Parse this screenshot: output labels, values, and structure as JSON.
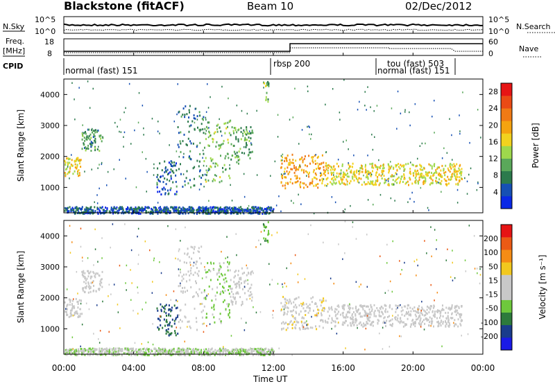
{
  "header": {
    "station": "Blackstone (fitACF)",
    "beam": "Beam 10",
    "date": "02/Dec/2012"
  },
  "labels": {
    "nsky": "N.Sky",
    "nsearch": "N.Search",
    "freq": "Freq.",
    "freq_unit": "[MHz]",
    "nave": "Nave",
    "cpid": "CPID"
  },
  "noise_ticks": {
    "top": "10^5",
    "bottom": "10^0"
  },
  "freq_ticks": {
    "left": [
      "18",
      "8"
    ],
    "right": [
      "60",
      "0"
    ]
  },
  "cpid_segments": [
    {
      "label": "normal (fast) 151",
      "start": 0
    },
    {
      "label": "rbsp 200",
      "start": 12.0
    },
    {
      "label": "tou (fast) 503",
      "start": 18.1
    },
    {
      "label": "normal (fast) 151",
      "start": 18.1
    }
  ],
  "chart_data": [
    {
      "type": "heatmap",
      "title": "Power",
      "xlabel": "Time UT",
      "ylabel": "Slant Range [km]",
      "xlim": [
        0,
        24
      ],
      "ylim": [
        180,
        4500
      ],
      "x_ticks": [
        "00:00",
        "04:00",
        "08:00",
        "12:00",
        "16:00",
        "20:00",
        "00:00"
      ],
      "y_ticks": [
        1000,
        2000,
        3000,
        4000
      ],
      "colorbar": {
        "label": "Power [dB]",
        "ticks": [
          4,
          8,
          12,
          16,
          20,
          24,
          28
        ],
        "range": [
          0,
          30
        ],
        "colors": [
          "#0a28e6",
          "#1650b4",
          "#2c7a4c",
          "#5aa85a",
          "#9ed84c",
          "#f2d21e",
          "#f5a30f",
          "#f07a14",
          "#ea4a14",
          "#e61414"
        ]
      },
      "bands": [
        {
          "t0": 0.0,
          "t1": 1.0,
          "r0": 1400,
          "r1": 2000,
          "level": 16
        },
        {
          "t0": 1.0,
          "t1": 2.2,
          "r0": 2200,
          "r1": 2900,
          "level": 9
        },
        {
          "t0": 5.3,
          "t1": 6.5,
          "r0": 800,
          "r1": 1900,
          "level": 6
        },
        {
          "t0": 6.5,
          "t1": 8.0,
          "r0": 1000,
          "r1": 3700,
          "level": 7
        },
        {
          "t0": 8.0,
          "t1": 9.5,
          "r0": 1200,
          "r1": 3200,
          "level": 12
        },
        {
          "t0": 9.5,
          "t1": 10.8,
          "r0": 1800,
          "r1": 3000,
          "level": 10
        },
        {
          "t0": 11.4,
          "t1": 11.7,
          "r0": 3800,
          "r1": 4500,
          "level": 12
        },
        {
          "t0": 12.4,
          "t1": 15.0,
          "r0": 1000,
          "r1": 2100,
          "level": 20
        },
        {
          "t0": 15.0,
          "t1": 22.8,
          "r0": 1100,
          "r1": 1800,
          "level": 16
        },
        {
          "t0": 0.0,
          "t1": 12.0,
          "r0": 180,
          "r1": 400,
          "level": 5
        }
      ]
    },
    {
      "type": "heatmap",
      "title": "Velocity",
      "xlabel": "Time UT",
      "ylabel": "Slant Range [km]",
      "xlim": [
        0,
        24
      ],
      "ylim": [
        180,
        4500
      ],
      "x_ticks": [
        "00:00",
        "04:00",
        "08:00",
        "12:00",
        "16:00",
        "20:00",
        "00:00"
      ],
      "y_ticks": [
        1000,
        2000,
        3000,
        4000
      ],
      "colorbar": {
        "label": "Velocity [m s⁻¹]",
        "ticks": [
          200,
          100,
          50,
          15,
          -15,
          -50,
          -100,
          -200
        ],
        "range": [
          -250,
          250
        ],
        "colors": [
          "#1a1ae6",
          "#1a3c8c",
          "#2d7a3c",
          "#6ec83c",
          "#c8c8c8",
          "#c8c8c8",
          "#f2c81e",
          "#f58c14",
          "#eb5a14",
          "#e61414"
        ]
      },
      "bands": [
        {
          "t0": 0.0,
          "t1": 1.0,
          "r0": 1400,
          "r1": 2000,
          "level": -5
        },
        {
          "t0": 1.0,
          "t1": 2.2,
          "r0": 2200,
          "r1": 2900,
          "level": 0
        },
        {
          "t0": 5.3,
          "t1": 6.5,
          "r0": 800,
          "r1": 1900,
          "level": -150
        },
        {
          "t0": 6.5,
          "t1": 8.0,
          "r0": 1000,
          "r1": 3700,
          "level": 5
        },
        {
          "t0": 8.0,
          "t1": 9.5,
          "r0": 1200,
          "r1": 3200,
          "level": -60
        },
        {
          "t0": 9.5,
          "t1": 10.8,
          "r0": 1800,
          "r1": 3000,
          "level": 10
        },
        {
          "t0": 11.4,
          "t1": 11.7,
          "r0": 3800,
          "r1": 4500,
          "level": -80
        },
        {
          "t0": 12.4,
          "t1": 15.0,
          "r0": 1000,
          "r1": 2100,
          "level": 30
        },
        {
          "t0": 15.0,
          "t1": 22.8,
          "r0": 1100,
          "r1": 1800,
          "level": 0
        },
        {
          "t0": 0.0,
          "t1": 12.0,
          "r0": 180,
          "r1": 400,
          "level": -40
        }
      ]
    }
  ]
}
